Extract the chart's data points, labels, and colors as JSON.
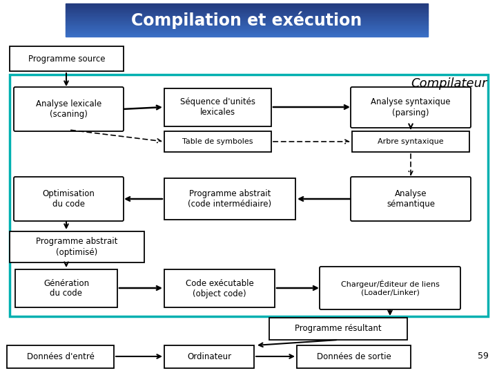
{
  "title": "Compilation et exécution",
  "title_bg_top": "#3a6fc4",
  "title_bg_bot": "#1a3a7a",
  "title_text_color": "#ffffff",
  "bg_color": "#ffffff",
  "compiler_box_color": "#00b0b0",
  "compiler_label": "Compilateur",
  "page_number": "59"
}
